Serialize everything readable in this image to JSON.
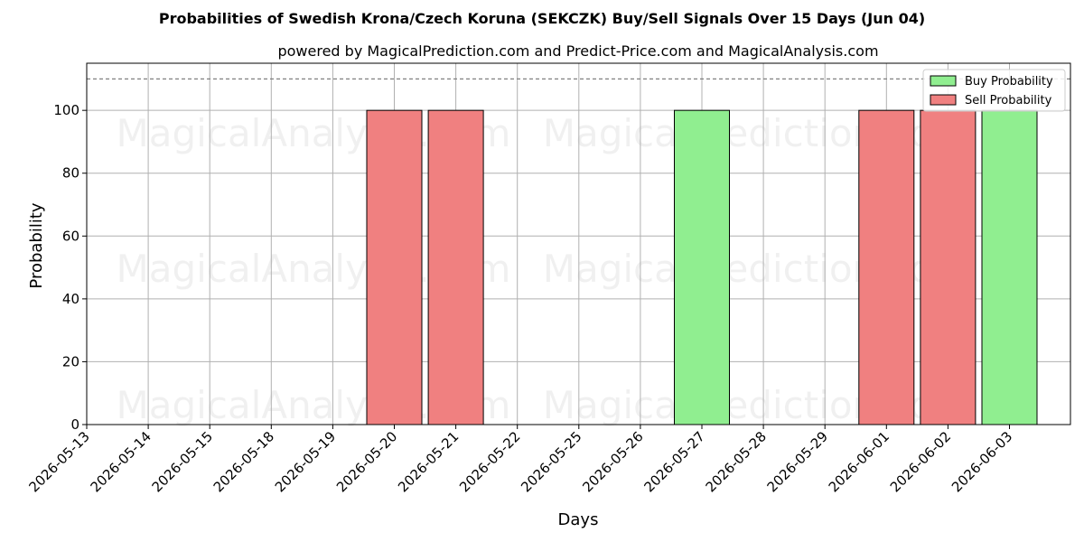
{
  "chart_data": {
    "type": "bar",
    "title": "Probabilities of Swedish Krona/Czech Koruna (SEKCZK) Buy/Sell Signals Over 15 Days (Jun 04)",
    "subtitle": "powered by MagicalPrediction.com and Predict-Price.com and MagicalAnalysis.com",
    "xlabel": "Days",
    "ylabel": "Probability",
    "ylim": [
      0,
      115
    ],
    "yticks": [
      0,
      20,
      40,
      60,
      80,
      100
    ],
    "reference_line": 110,
    "grid": true,
    "legend_position": "top-right",
    "categories": [
      "2026-05-13",
      "2026-05-14",
      "2026-05-15",
      "2026-05-18",
      "2026-05-19",
      "2026-05-20",
      "2026-05-21",
      "2026-05-22",
      "2026-05-25",
      "2026-05-26",
      "2026-05-27",
      "2026-05-28",
      "2026-05-29",
      "2026-06-01",
      "2026-06-02",
      "2026-06-03"
    ],
    "series": [
      {
        "name": "Buy Probability",
        "color": "#90ee90",
        "values": [
          0,
          0,
          0,
          0,
          0,
          0,
          0,
          0,
          0,
          0,
          100,
          0,
          0,
          0,
          0,
          100
        ]
      },
      {
        "name": "Sell Probability",
        "color": "#f08080",
        "values": [
          0,
          0,
          0,
          0,
          0,
          100,
          100,
          0,
          0,
          0,
          0,
          0,
          0,
          100,
          100,
          0
        ]
      }
    ]
  },
  "watermarks": [
    "MagicalAnalysis.com",
    "MagicalPrediction.com"
  ]
}
